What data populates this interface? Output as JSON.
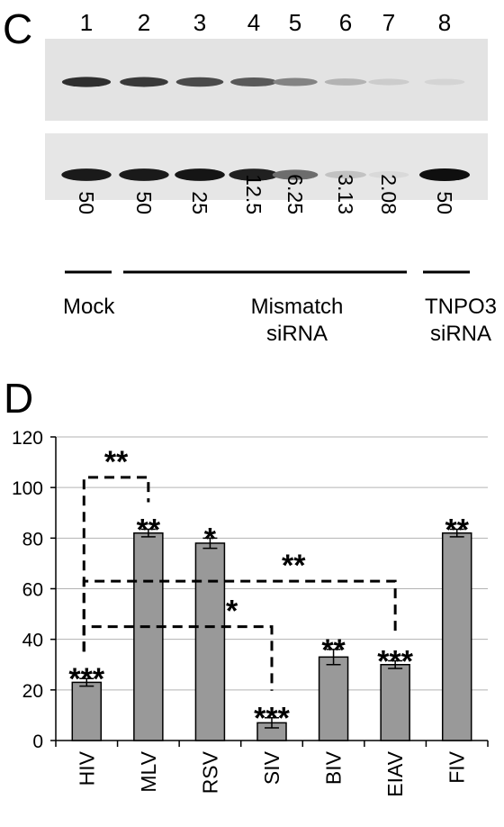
{
  "panel_c": {
    "letter": "C",
    "lane_numbers": [
      "1",
      "2",
      "3",
      "4",
      "5",
      "6",
      "7",
      "8"
    ],
    "blot_top_intensity": [
      0.85,
      0.8,
      0.72,
      0.65,
      0.45,
      0.22,
      0.1,
      0.06
    ],
    "blot_bottom_intensity": [
      0.95,
      0.95,
      0.97,
      0.92,
      0.55,
      0.15,
      0.04,
      1.0
    ],
    "concentrations": [
      "50",
      "50",
      "25",
      "12.5",
      "6.25",
      "3.13",
      "2.08",
      "50"
    ],
    "groups": [
      {
        "label_lines": [
          "Mock"
        ]
      },
      {
        "label_lines": [
          "Mismatch",
          "siRNA"
        ]
      },
      {
        "label_lines": [
          "TNPO3",
          "siRNA"
        ]
      }
    ]
  },
  "panel_d": {
    "letter": "D",
    "bar_color": "#999999"
  },
  "chart_data": {
    "type": "bar",
    "categories": [
      "HIV",
      "MLV",
      "RSV",
      "SIV",
      "BIV",
      "EIAV",
      "FIV"
    ],
    "values": [
      23,
      82,
      78,
      7,
      33,
      30,
      82
    ],
    "errors": [
      1.5,
      1.5,
      2,
      2,
      3,
      1.5,
      1.5
    ],
    "significance": [
      "***",
      "**",
      "*",
      "***",
      "**",
      "***",
      "**"
    ],
    "ylim": [
      0,
      120
    ],
    "yticks": [
      "0",
      "20",
      "40",
      "60",
      "80",
      "100",
      "120"
    ],
    "grid": true,
    "comparisons": [
      {
        "from": "HIV",
        "to": "MLV",
        "y": 104,
        "label": "**"
      },
      {
        "from": "HIV",
        "to": "EIAV",
        "y": 63,
        "label": "**"
      },
      {
        "from": "HIV",
        "to": "SIV",
        "y": 45,
        "label": "*"
      }
    ]
  }
}
